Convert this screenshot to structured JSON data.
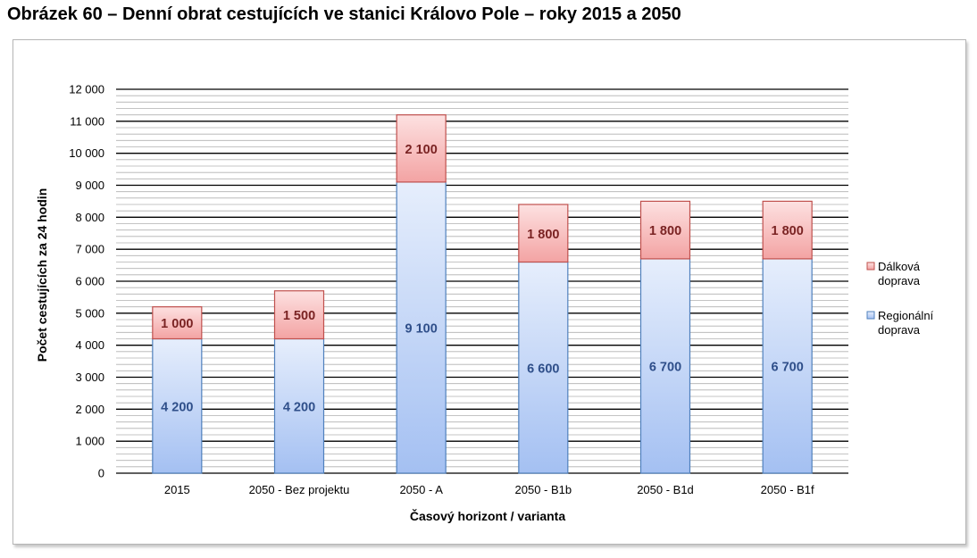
{
  "figure_title": "Obrázek 60 – Denní obrat cestujících ve stanici Královo Pole – roky 2015 a 2050",
  "chart_data": {
    "type": "bar",
    "stacked": true,
    "categories": [
      "2015",
      "2050 - Bez projektu",
      "2050 - A",
      "2050 - B1b",
      "2050 - B1d",
      "2050 - B1f"
    ],
    "series": [
      {
        "name": "Regionální doprava",
        "values": [
          4200,
          4200,
          9100,
          6600,
          6700,
          6700
        ],
        "labels": [
          "4 200",
          "4 200",
          "9 100",
          "6 600",
          "6 700",
          "6 700"
        ],
        "color_top": "#e6eefc",
        "color_bottom": "#a4c0f2",
        "border": "#4f80bd",
        "label_color": "#2f4f8a"
      },
      {
        "name": "Dálková doprava",
        "values": [
          1000,
          1500,
          2100,
          1800,
          1800,
          1800
        ],
        "labels": [
          "1 000",
          "1 500",
          "2 100",
          "1 800",
          "1 800",
          "1 800"
        ],
        "color_top": "#fde1e1",
        "color_bottom": "#f3a3a3",
        "border": "#c0504d",
        "label_color": "#7a2323"
      }
    ],
    "legend_labels": [
      "Dálková\ndoprava",
      "Regionální\ndoprava"
    ],
    "xlabel": "Časový horizont / varianta",
    "ylabel": "Počet cestujících za 24 hodin",
    "ylim": [
      0,
      12000
    ],
    "major_tick": 1000,
    "minor_tick": 200,
    "yticks": [
      "0",
      "1 000",
      "2 000",
      "3 000",
      "4 000",
      "5 000",
      "6 000",
      "7 000",
      "8 000",
      "9 000",
      "10 000",
      "11 000",
      "12 000"
    ],
    "grid": true,
    "legend_position": "right"
  }
}
